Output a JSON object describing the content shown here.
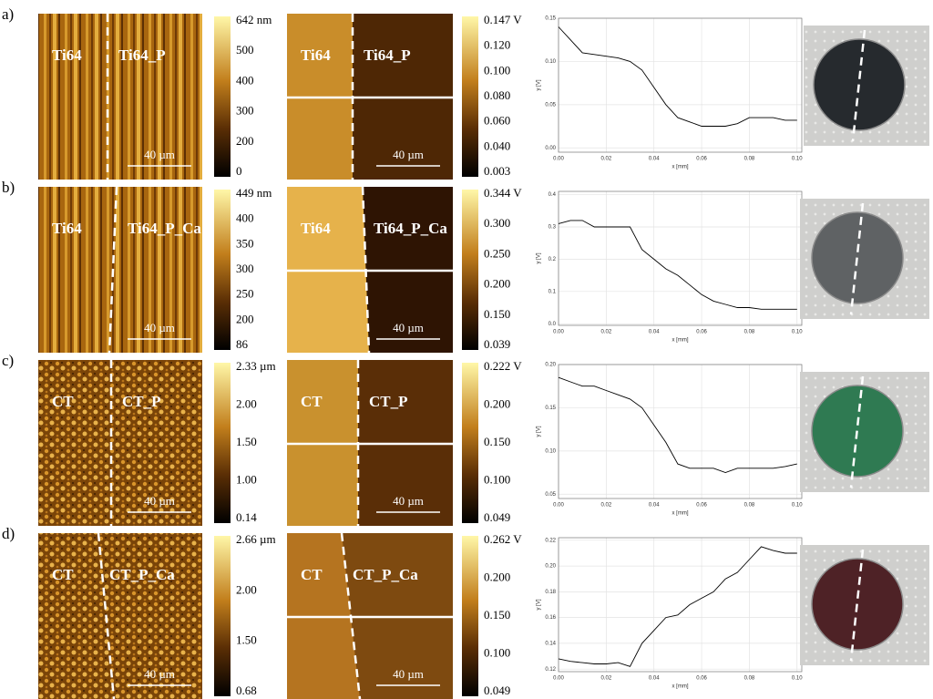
{
  "rows": [
    {
      "label": "a)",
      "topography": {
        "left_label": "Ti64",
        "right_label": "Ti64_P",
        "scale_bar": "40 µm",
        "colorbar_labels": [
          "642 nm",
          "500",
          "400",
          "300",
          "200",
          "0"
        ]
      },
      "potential": {
        "left_label": "Ti64",
        "right_label": "Ti64_P",
        "scale_bar": "40 µm",
        "colorbar_labels": [
          "0.147 V",
          "0.120",
          "0.100",
          "0.080",
          "0.060",
          "0.040",
          "0.003"
        ]
      }
    },
    {
      "label": "b)",
      "topography": {
        "left_label": "Ti64",
        "right_label": "Ti64_P_Ca",
        "scale_bar": "40 µm",
        "colorbar_labels": [
          "449 nm",
          "400",
          "350",
          "300",
          "250",
          "200",
          "86"
        ]
      },
      "potential": {
        "left_label": "Ti64",
        "right_label": "Ti64_P_Ca",
        "scale_bar": "40 µm",
        "colorbar_labels": [
          "0.344 V",
          "0.300",
          "0.250",
          "0.200",
          "0.150",
          "0.039"
        ]
      }
    },
    {
      "label": "c)",
      "topography": {
        "left_label": "CT",
        "right_label": "CT_P",
        "scale_bar": "40 µm",
        "colorbar_labels": [
          "2.33 µm",
          "2.00",
          "1.50",
          "1.00",
          "0.14"
        ]
      },
      "potential": {
        "left_label": "CT",
        "right_label": "CT_P",
        "scale_bar": "40 µm",
        "colorbar_labels": [
          "0.222 V",
          "0.200",
          "0.150",
          "0.100",
          "0.049"
        ]
      }
    },
    {
      "label": "d)",
      "topography": {
        "left_label": "CT",
        "right_label": "CT_P_Ca",
        "scale_bar": "40 µm",
        "colorbar_labels": [
          "2.66 µm",
          "2.00",
          "1.50",
          "0.68"
        ]
      },
      "potential": {
        "left_label": "CT",
        "right_label": "CT_P_Ca",
        "scale_bar": "40 µm",
        "colorbar_labels": [
          "0.262 V",
          "0.200",
          "0.150",
          "0.100",
          "0.049"
        ]
      }
    }
  ],
  "chart_data": [
    {
      "type": "line",
      "xlabel": "x [mm]",
      "ylabel": "y [V]",
      "grid": true,
      "x": [
        0,
        0.005,
        0.01,
        0.015,
        0.02,
        0.025,
        0.03,
        0.035,
        0.04,
        0.045,
        0.05,
        0.055,
        0.06,
        0.065,
        0.07,
        0.075,
        0.08,
        0.085,
        0.09,
        0.095,
        0.1
      ],
      "series": [
        {
          "color": "#000000",
          "values": [
            0.14,
            0.125,
            0.11,
            0.108,
            0.106,
            0.104,
            0.1,
            0.09,
            0.07,
            0.05,
            0.035,
            0.03,
            0.025,
            0.025,
            0.025,
            0.028,
            0.035,
            0.035,
            0.035,
            0.032,
            0.032
          ]
        }
      ],
      "xlim": [
        0,
        0.102
      ],
      "ylim": [
        -0.005,
        0.15
      ],
      "xticks": [
        {
          "value": 0,
          "label": "0.00"
        },
        0.02,
        0.04,
        0.06,
        0.08,
        {
          "value": 0.1,
          "label": "0.10"
        }
      ],
      "yticks": [
        {
          "value": 0,
          "label": "0.00"
        },
        0.05,
        {
          "value": 0.1,
          "label": "0.10"
        },
        0.15
      ]
    },
    {
      "type": "line",
      "xlabel": "x [mm]",
      "ylabel": "y [V]",
      "grid": true,
      "x": [
        0,
        0.005,
        0.01,
        0.015,
        0.02,
        0.025,
        0.03,
        0.035,
        0.04,
        0.045,
        0.05,
        0.055,
        0.06,
        0.065,
        0.07,
        0.075,
        0.08,
        0.085,
        0.09,
        0.095,
        0.1
      ],
      "series": [
        {
          "color": "#000000",
          "values": [
            0.31,
            0.32,
            0.32,
            0.3,
            0.3,
            0.3,
            0.3,
            0.23,
            0.2,
            0.17,
            0.15,
            0.12,
            0.09,
            0.07,
            0.06,
            0.05,
            0.05,
            0.045,
            0.045,
            0.045,
            0.045
          ]
        }
      ],
      "xlim": [
        0,
        0.102
      ],
      "ylim": [
        -0.005,
        0.41
      ],
      "xticks": [
        {
          "value": 0,
          "label": "0.00"
        },
        0.02,
        0.04,
        0.06,
        0.08,
        {
          "value": 0.1,
          "label": "0.10"
        }
      ],
      "yticks": [
        {
          "value": 0,
          "label": "0.0"
        },
        0.1,
        0.2,
        0.3,
        0.4
      ]
    },
    {
      "type": "line",
      "xlabel": "x [mm]",
      "ylabel": "y [V]",
      "grid": true,
      "x": [
        0,
        0.005,
        0.01,
        0.015,
        0.02,
        0.025,
        0.03,
        0.035,
        0.04,
        0.045,
        0.05,
        0.055,
        0.06,
        0.065,
        0.07,
        0.075,
        0.08,
        0.085,
        0.09,
        0.095,
        0.1
      ],
      "series": [
        {
          "color": "#000000",
          "values": [
            0.185,
            0.18,
            0.175,
            0.175,
            0.17,
            0.165,
            0.16,
            0.15,
            0.13,
            0.11,
            0.085,
            0.08,
            0.08,
            0.08,
            0.075,
            0.08,
            0.08,
            0.08,
            0.08,
            0.082,
            0.085
          ]
        }
      ],
      "xlim": [
        0,
        0.102
      ],
      "ylim": [
        0.045,
        0.2
      ],
      "xticks": [
        {
          "value": 0,
          "label": "0.00"
        },
        0.02,
        0.04,
        0.06,
        0.08,
        {
          "value": 0.1,
          "label": "0.10"
        }
      ],
      "yticks": [
        0.05,
        {
          "value": 0.1,
          "label": "0.10"
        },
        0.15,
        {
          "value": 0.2,
          "label": "0.20"
        }
      ]
    },
    {
      "type": "line",
      "xlabel": "x [mm]",
      "ylabel": "y [V]",
      "grid": true,
      "x": [
        0,
        0.005,
        0.01,
        0.015,
        0.02,
        0.025,
        0.03,
        0.035,
        0.04,
        0.045,
        0.05,
        0.055,
        0.06,
        0.065,
        0.07,
        0.075,
        0.08,
        0.085,
        0.09,
        0.095,
        0.1
      ],
      "series": [
        {
          "color": "#000000",
          "values": [
            0.128,
            0.126,
            0.125,
            0.124,
            0.124,
            0.125,
            0.122,
            0.14,
            0.15,
            0.16,
            0.162,
            0.17,
            0.175,
            0.18,
            0.19,
            0.195,
            0.205,
            0.215,
            0.212,
            0.21,
            0.21
          ]
        }
      ],
      "xlim": [
        0,
        0.102
      ],
      "ylim": [
        0.118,
        0.222
      ],
      "xticks": [
        {
          "value": 0,
          "label": "0.00"
        },
        0.02,
        0.04,
        0.06,
        0.08,
        {
          "value": 0.1,
          "label": "0.10"
        }
      ],
      "yticks": [
        0.12,
        0.14,
        0.16,
        0.18,
        {
          "value": 0.2,
          "label": "0.20"
        },
        0.22
      ]
    }
  ]
}
